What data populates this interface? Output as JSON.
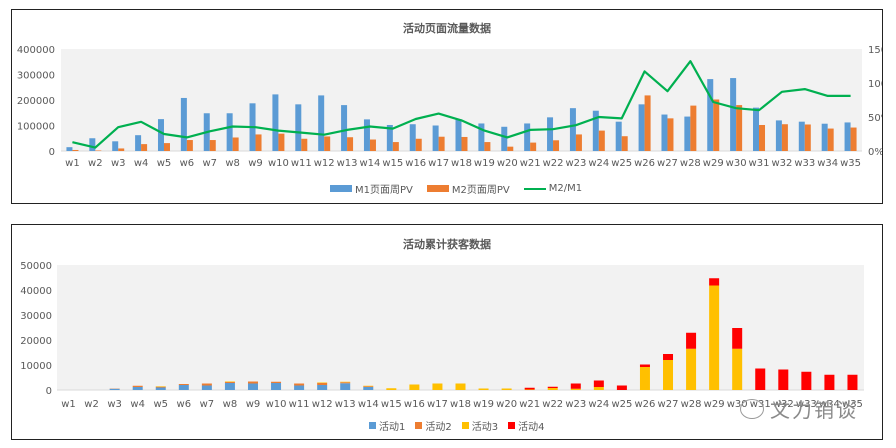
{
  "chart_data": [
    {
      "type": "bar+line",
      "title": "活动页面流量数据",
      "categories": [
        "w1",
        "w2",
        "w3",
        "w4",
        "w5",
        "w6",
        "w7",
        "w8",
        "w9",
        "w10",
        "w11",
        "w12",
        "w13",
        "w14",
        "w15",
        "w16",
        "w17",
        "w18",
        "w19",
        "w20",
        "w21",
        "w22",
        "w23",
        "w24",
        "w25",
        "w26",
        "w27",
        "w28",
        "w29",
        "w30",
        "w31",
        "w32",
        "w33",
        "w34",
        "w35"
      ],
      "series": [
        {
          "name": "M1页面周PV",
          "type": "bar",
          "axis": "left",
          "color": "#5B9BD5",
          "values": [
            15000,
            50000,
            38000,
            62000,
            125000,
            208000,
            148000,
            148000,
            187000,
            222000,
            183000,
            218000,
            180000,
            124000,
            102000,
            105000,
            100000,
            125000,
            108000,
            95000,
            108000,
            132000,
            168000,
            158000,
            115000,
            183000,
            143000,
            135000,
            282000,
            286000,
            170000,
            120000,
            115000,
            107000,
            112000
          ]
        },
        {
          "name": "M2页面周PV",
          "type": "bar",
          "axis": "left",
          "color": "#ED7D31",
          "values": [
            4000,
            2000,
            10000,
            27000,
            31000,
            43000,
            43000,
            53000,
            65000,
            68000,
            48000,
            57000,
            54000,
            45000,
            35000,
            48000,
            56000,
            55000,
            35000,
            17000,
            33000,
            42000,
            65000,
            80000,
            58000,
            218000,
            128000,
            178000,
            202000,
            180000,
            102000,
            105000,
            104000,
            88000,
            92000
          ]
        },
        {
          "name": "M2/M1",
          "type": "line",
          "axis": "right",
          "color": "#00B050",
          "values": [
            0.13,
            0.05,
            0.35,
            0.43,
            0.25,
            0.2,
            0.29,
            0.36,
            0.35,
            0.3,
            0.27,
            0.24,
            0.31,
            0.36,
            0.33,
            0.47,
            0.55,
            0.45,
            0.3,
            0.2,
            0.31,
            0.32,
            0.38,
            0.5,
            0.48,
            1.17,
            0.88,
            1.32,
            0.72,
            0.63,
            0.6,
            0.87,
            0.91,
            0.81,
            0.81
          ]
        }
      ],
      "left_axis": {
        "ylim": [
          0,
          400000
        ],
        "ticks": [
          "400000",
          "300000",
          "200000",
          "100000",
          "0"
        ]
      },
      "right_axis": {
        "ylim": [
          0,
          1.5
        ],
        "ticks": [
          "150%",
          "100%",
          "50%",
          "0%"
        ]
      },
      "legend_position": "bottom",
      "grid": false
    },
    {
      "type": "stacked-bar",
      "title": "活动累计获客数据",
      "categories": [
        "w1",
        "w2",
        "w3",
        "w4",
        "w5",
        "w6",
        "w7",
        "w8",
        "w9",
        "w10",
        "w11",
        "w12",
        "w13",
        "w14",
        "w15",
        "w16",
        "w17",
        "w18",
        "w19",
        "w20",
        "w21",
        "w22",
        "w23",
        "w24",
        "w25",
        "w26",
        "w27",
        "w28",
        "w29",
        "w30",
        "w31",
        "w32",
        "w33",
        "w34",
        "w35"
      ],
      "series": [
        {
          "name": "活动1",
          "color": "#5B9BD5",
          "values": [
            0,
            0,
            500,
            1200,
            1000,
            2000,
            1800,
            2800,
            2600,
            2800,
            1800,
            2000,
            2700,
            1200,
            0,
            0,
            0,
            0,
            0,
            0,
            0,
            0,
            0,
            0,
            0,
            0,
            0,
            0,
            0,
            0,
            0,
            0,
            0,
            0,
            0
          ]
        },
        {
          "name": "活动2",
          "color": "#ED7D31",
          "values": [
            0,
            0,
            100,
            500,
            300,
            400,
            800,
            400,
            800,
            500,
            800,
            800,
            400,
            300,
            0,
            0,
            0,
            0,
            0,
            0,
            0,
            0,
            0,
            0,
            0,
            0,
            0,
            0,
            0,
            0,
            0,
            0,
            0,
            0,
            0
          ]
        },
        {
          "name": "活动3",
          "color": "#FFC000",
          "values": [
            0,
            0,
            0,
            0,
            200,
            0,
            0,
            200,
            0,
            0,
            0,
            200,
            200,
            200,
            700,
            2200,
            2600,
            2600,
            600,
            600,
            200,
            800,
            500,
            1200,
            0,
            9200,
            12000,
            16500,
            41800,
            16500,
            0,
            0,
            0,
            0,
            0
          ]
        },
        {
          "name": "活动4",
          "color": "#FF0000",
          "values": [
            0,
            0,
            0,
            0,
            0,
            0,
            0,
            0,
            0,
            0,
            0,
            0,
            0,
            0,
            0,
            0,
            0,
            0,
            0,
            0,
            700,
            500,
            2100,
            2600,
            1800,
            1000,
            2400,
            6400,
            2900,
            8300,
            8600,
            8200,
            7300,
            6100,
            6100
          ]
        }
      ],
      "ylim": [
        0,
        50000
      ],
      "ticks": [
        "50000",
        "40000",
        "30000",
        "20000",
        "10000",
        "0"
      ],
      "legend_position": "bottom",
      "grid": false
    }
  ],
  "chart1": {
    "title": "活动页面流量数据",
    "legend": [
      "M1页面周PV",
      "M2页面周PV",
      "M2/M1"
    ]
  },
  "chart2": {
    "title": "活动累计获客数据",
    "legend": [
      "活动1",
      "活动2",
      "活动3",
      "活动4"
    ]
  },
  "watermark": {
    "text": "文力销谈",
    "icon": "wechat-bubble-icon"
  }
}
